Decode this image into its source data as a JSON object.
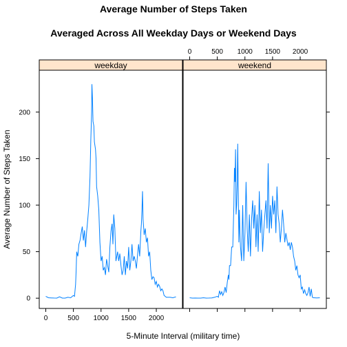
{
  "chart_data": {
    "type": "line",
    "title": "Average Number of Steps Taken",
    "subtitle": "Averaged Across All Weekday Days or Weekend Days",
    "xlabel": "5-Minute Interval (military time)",
    "ylabel": "Average Number of Steps Taken",
    "xlim": [
      -118,
      2473
    ],
    "ylim": [
      -11,
      245
    ],
    "x_ticks": [
      0,
      500,
      1000,
      1500,
      2000
    ],
    "x_tick_labels": [
      "0",
      "500",
      "1000",
      "1500",
      "2000"
    ],
    "y_ticks": [
      0,
      50,
      100,
      150,
      200
    ],
    "y_tick_labels": [
      "0",
      "50",
      "100",
      "150",
      "200"
    ],
    "layout": "two panels side by side, strip labels on top",
    "strip_color": "#ffe5cc",
    "line_color": "#0080ff",
    "panels": [
      {
        "name": "weekday",
        "points": [
          [
            0,
            2
          ],
          [
            50,
            0.5
          ],
          [
            100,
            0.3
          ],
          [
            150,
            0.2
          ],
          [
            200,
            0.1
          ],
          [
            250,
            1.5
          ],
          [
            300,
            0.1
          ],
          [
            350,
            0.1
          ],
          [
            400,
            1
          ],
          [
            450,
            0.5
          ],
          [
            500,
            3
          ],
          [
            520,
            2
          ],
          [
            540,
            15
          ],
          [
            550,
            30
          ],
          [
            560,
            50
          ],
          [
            580,
            45
          ],
          [
            600,
            58
          ],
          [
            620,
            62
          ],
          [
            640,
            70
          ],
          [
            660,
            77
          ],
          [
            680,
            62
          ],
          [
            700,
            73
          ],
          [
            720,
            55
          ],
          [
            740,
            72
          ],
          [
            760,
            85
          ],
          [
            780,
            100
          ],
          [
            800,
            130
          ],
          [
            815,
            170
          ],
          [
            830,
            200
          ],
          [
            835,
            230
          ],
          [
            845,
            215
          ],
          [
            855,
            190
          ],
          [
            870,
            185
          ],
          [
            880,
            168
          ],
          [
            900,
            160
          ],
          [
            910,
            150
          ],
          [
            920,
            120
          ],
          [
            940,
            110
          ],
          [
            960,
            95
          ],
          [
            980,
            60
          ],
          [
            1000,
            40
          ],
          [
            1020,
            45
          ],
          [
            1040,
            30
          ],
          [
            1060,
            33
          ],
          [
            1080,
            25
          ],
          [
            1100,
            42
          ],
          [
            1120,
            35
          ],
          [
            1140,
            28
          ],
          [
            1160,
            55
          ],
          [
            1180,
            72
          ],
          [
            1200,
            80
          ],
          [
            1215,
            58
          ],
          [
            1230,
            90
          ],
          [
            1250,
            75
          ],
          [
            1270,
            40
          ],
          [
            1300,
            50
          ],
          [
            1320,
            40
          ],
          [
            1340,
            48
          ],
          [
            1360,
            35
          ],
          [
            1380,
            25
          ],
          [
            1400,
            30
          ],
          [
            1420,
            45
          ],
          [
            1440,
            25
          ],
          [
            1460,
            40
          ],
          [
            1480,
            32
          ],
          [
            1500,
            55
          ],
          [
            1520,
            30
          ],
          [
            1540,
            40
          ],
          [
            1560,
            58
          ],
          [
            1580,
            40
          ],
          [
            1600,
            45
          ],
          [
            1620,
            40
          ],
          [
            1640,
            32
          ],
          [
            1660,
            46
          ],
          [
            1680,
            58
          ],
          [
            1700,
            45
          ],
          [
            1720,
            72
          ],
          [
            1730,
            80
          ],
          [
            1740,
            95
          ],
          [
            1750,
            115
          ],
          [
            1760,
            85
          ],
          [
            1780,
            68
          ],
          [
            1800,
            75
          ],
          [
            1820,
            60
          ],
          [
            1840,
            65
          ],
          [
            1860,
            45
          ],
          [
            1880,
            50
          ],
          [
            1900,
            30
          ],
          [
            1920,
            20
          ],
          [
            1940,
            23
          ],
          [
            1960,
            22
          ],
          [
            1980,
            15
          ],
          [
            2000,
            18
          ],
          [
            2020,
            12
          ],
          [
            2040,
            15
          ],
          [
            2060,
            13
          ],
          [
            2080,
            8
          ],
          [
            2100,
            10
          ],
          [
            2120,
            8
          ],
          [
            2140,
            3
          ],
          [
            2160,
            2
          ],
          [
            2180,
            1
          ],
          [
            2200,
            1
          ],
          [
            2250,
            1
          ],
          [
            2300,
            0.5
          ],
          [
            2355,
            1.5
          ]
        ]
      },
      {
        "name": "weekend",
        "points": [
          [
            0,
            0.5
          ],
          [
            50,
            0.1
          ],
          [
            100,
            0.2
          ],
          [
            150,
            0.1
          ],
          [
            200,
            0.1
          ],
          [
            250,
            0.5
          ],
          [
            300,
            0.1
          ],
          [
            350,
            0.2
          ],
          [
            400,
            0.3
          ],
          [
            450,
            1
          ],
          [
            500,
            2
          ],
          [
            520,
            1
          ],
          [
            540,
            8
          ],
          [
            560,
            4
          ],
          [
            580,
            7
          ],
          [
            600,
            3
          ],
          [
            620,
            6
          ],
          [
            640,
            12
          ],
          [
            660,
            6
          ],
          [
            680,
            17
          ],
          [
            700,
            25
          ],
          [
            710,
            20
          ],
          [
            720,
            35
          ],
          [
            740,
            35
          ],
          [
            760,
            55
          ],
          [
            780,
            55
          ],
          [
            800,
            100
          ],
          [
            810,
            140
          ],
          [
            820,
            125
          ],
          [
            830,
            160
          ],
          [
            840,
            90
          ],
          [
            850,
            100
          ],
          [
            860,
            122
          ],
          [
            870,
            166
          ],
          [
            880,
            115
          ],
          [
            890,
            60
          ],
          [
            900,
            95
          ],
          [
            910,
            70
          ],
          [
            920,
            55
          ],
          [
            940,
            40
          ],
          [
            960,
            100
          ],
          [
            980,
            40
          ],
          [
            1000,
            70
          ],
          [
            1020,
            125
          ],
          [
            1040,
            75
          ],
          [
            1060,
            50
          ],
          [
            1080,
            90
          ],
          [
            1100,
            45
          ],
          [
            1120,
            85
          ],
          [
            1140,
            105
          ],
          [
            1160,
            75
          ],
          [
            1180,
            100
          ],
          [
            1200,
            55
          ],
          [
            1220,
            90
          ],
          [
            1240,
            50
          ],
          [
            1260,
            115
          ],
          [
            1280,
            70
          ],
          [
            1300,
            95
          ],
          [
            1320,
            50
          ],
          [
            1340,
            72
          ],
          [
            1360,
            90
          ],
          [
            1380,
            105
          ],
          [
            1400,
            75
          ],
          [
            1420,
            145
          ],
          [
            1430,
            110
          ],
          [
            1440,
            70
          ],
          [
            1460,
            100
          ],
          [
            1480,
            75
          ],
          [
            1500,
            110
          ],
          [
            1520,
            90
          ],
          [
            1540,
            105
          ],
          [
            1560,
            70
          ],
          [
            1580,
            120
          ],
          [
            1600,
            90
          ],
          [
            1620,
            80
          ],
          [
            1640,
            60
          ],
          [
            1660,
            75
          ],
          [
            1680,
            95
          ],
          [
            1700,
            80
          ],
          [
            1720,
            60
          ],
          [
            1740,
            70
          ],
          [
            1760,
            63
          ],
          [
            1780,
            56
          ],
          [
            1800,
            60
          ],
          [
            1820,
            52
          ],
          [
            1840,
            60
          ],
          [
            1860,
            55
          ],
          [
            1880,
            45
          ],
          [
            1900,
            40
          ],
          [
            1920,
            30
          ],
          [
            1940,
            35
          ],
          [
            1960,
            25
          ],
          [
            1980,
            22
          ],
          [
            2000,
            25
          ],
          [
            2020,
            10
          ],
          [
            2040,
            12
          ],
          [
            2060,
            5
          ],
          [
            2080,
            9
          ],
          [
            2100,
            5
          ],
          [
            2120,
            3
          ],
          [
            2140,
            6
          ],
          [
            2160,
            12
          ],
          [
            2180,
            2
          ],
          [
            2200,
            10
          ],
          [
            2220,
            1
          ],
          [
            2240,
            0.5
          ],
          [
            2250,
            0.5
          ],
          [
            2300,
            0.3
          ],
          [
            2355,
            0.5
          ]
        ]
      }
    ]
  }
}
